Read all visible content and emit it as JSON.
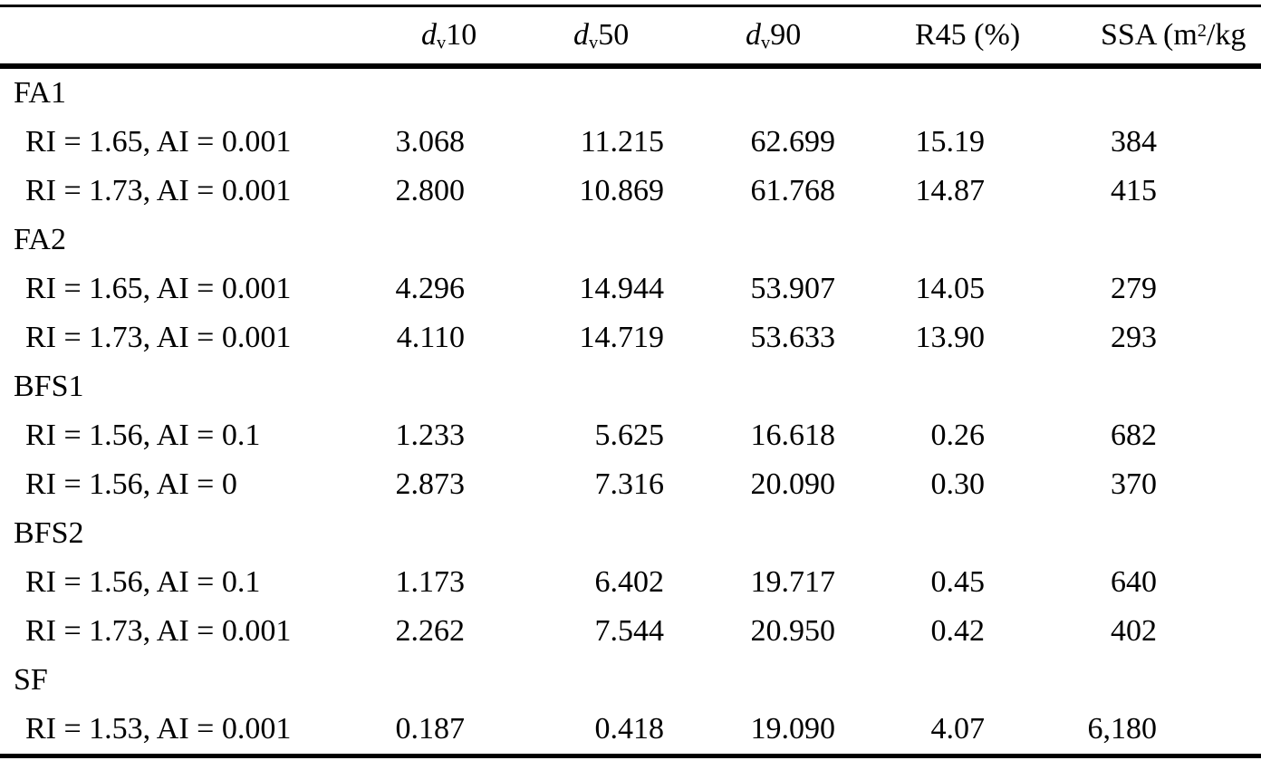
{
  "page": {
    "background": "#ffffff",
    "text_color": "#000000",
    "rule_color": "#000000"
  },
  "table": {
    "header": {
      "label": "",
      "dv10": {
        "base": "d",
        "sub": "v",
        "num": "10"
      },
      "dv50": {
        "base": "d",
        "sub": "v",
        "num": "50"
      },
      "dv90": {
        "base": "d",
        "sub": "v",
        "num": "90"
      },
      "r45": "R45 (%)",
      "ssa": {
        "pre": "SSA (m",
        "sup": "2",
        "post": "/kg"
      }
    },
    "groups": [
      {
        "name": "FA1",
        "rows": [
          {
            "label": "RI = 1.65, AI = 0.001",
            "dv10": "3.068",
            "dv50": "11.215",
            "dv90": "62.699",
            "r45": "15.19",
            "ssa": "384"
          },
          {
            "label": "RI = 1.73, AI = 0.001",
            "dv10": "2.800",
            "dv50": "10.869",
            "dv90": "61.768",
            "r45": "14.87",
            "ssa": "415"
          }
        ]
      },
      {
        "name": "FA2",
        "rows": [
          {
            "label": "RI = 1.65, AI = 0.001",
            "dv10": "4.296",
            "dv50": "14.944",
            "dv90": "53.907",
            "r45": "14.05",
            "ssa": "279"
          },
          {
            "label": "RI = 1.73, AI = 0.001",
            "dv10": "4.110",
            "dv50": "14.719",
            "dv90": "53.633",
            "r45": "13.90",
            "ssa": "293"
          }
        ]
      },
      {
        "name": "BFS1",
        "rows": [
          {
            "label": "RI = 1.56, AI = 0.1",
            "dv10": "1.233",
            "dv50": "5.625",
            "dv90": "16.618",
            "r45": "0.26",
            "ssa": "682"
          },
          {
            "label": "RI = 1.56, AI = 0",
            "dv10": "2.873",
            "dv50": "7.316",
            "dv90": "20.090",
            "r45": "0.30",
            "ssa": "370"
          }
        ]
      },
      {
        "name": "BFS2",
        "rows": [
          {
            "label": "RI = 1.56, AI = 0.1",
            "dv10": "1.173",
            "dv50": "6.402",
            "dv90": "19.717",
            "r45": "0.45",
            "ssa": "640"
          },
          {
            "label": "RI = 1.73, AI = 0.001",
            "dv10": "2.262",
            "dv50": "7.544",
            "dv90": "20.950",
            "r45": "0.42",
            "ssa": "402"
          }
        ]
      },
      {
        "name": "SF",
        "rows": [
          {
            "label": "RI = 1.53, AI = 0.001",
            "dv10": "0.187",
            "dv50": "0.418",
            "dv90": "19.090",
            "r45": "4.07",
            "ssa": "6,180"
          }
        ]
      }
    ]
  }
}
